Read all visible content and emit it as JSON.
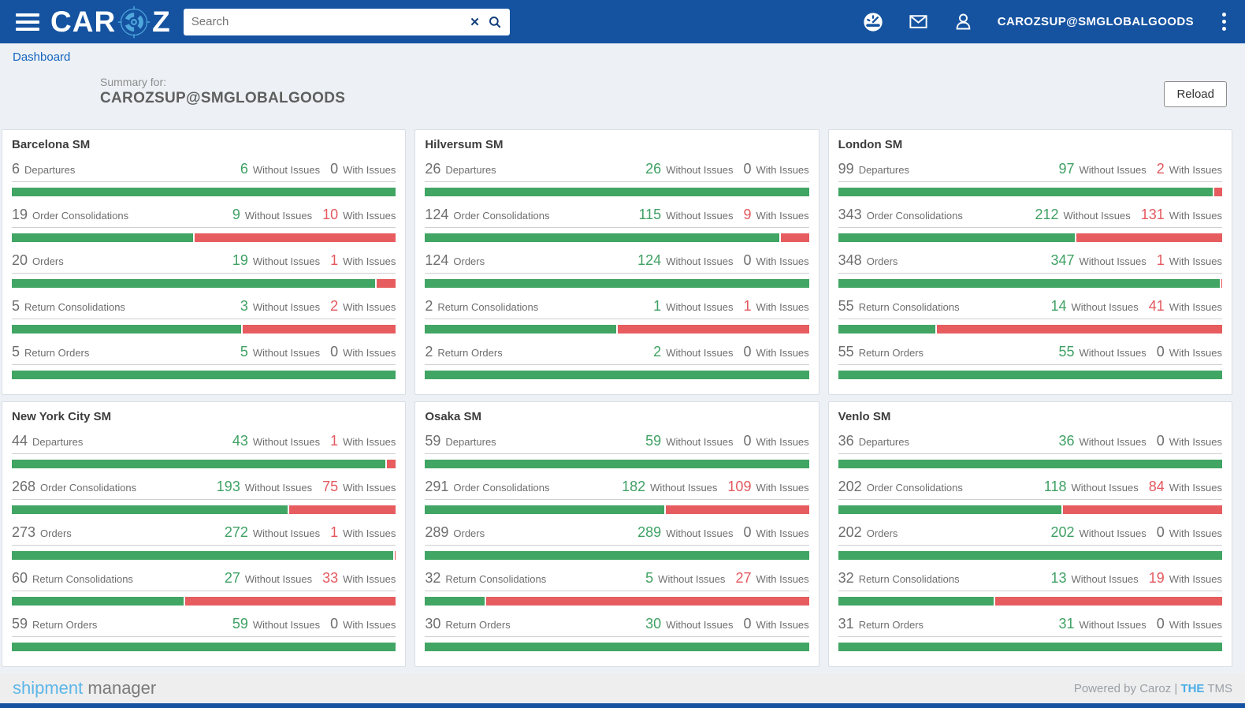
{
  "navbar": {
    "logo_left": "CAR",
    "logo_right": "Z",
    "search_placeholder": "Search",
    "user_label": "CAROZSUP@SMGLOBALGOODS"
  },
  "breadcrumb": {
    "label": "Dashboard"
  },
  "summary": {
    "label": "Summary for:",
    "value": "CAROZSUP@SMGLOBALGOODS",
    "reload_label": "Reload"
  },
  "labels": {
    "without_issues": "Without Issues",
    "with_issues": "With Issues"
  },
  "colors": {
    "navbar_blue": "#1553a1",
    "green": "#41a564",
    "red": "#e75c5f",
    "link_blue": "#1565c0",
    "footer_accent_blue": "#5cb6e8"
  },
  "cards": [
    {
      "title": "Barcelona SM",
      "metrics": [
        {
          "label": "Departures",
          "total": 6,
          "without": 6,
          "with": 0
        },
        {
          "label": "Order Consolidations",
          "total": 19,
          "without": 9,
          "with": 10
        },
        {
          "label": "Orders",
          "total": 20,
          "without": 19,
          "with": 1
        },
        {
          "label": "Return Consolidations",
          "total": 5,
          "without": 3,
          "with": 2
        },
        {
          "label": "Return Orders",
          "total": 5,
          "without": 5,
          "with": 0
        }
      ]
    },
    {
      "title": "Hilversum SM",
      "metrics": [
        {
          "label": "Departures",
          "total": 26,
          "without": 26,
          "with": 0
        },
        {
          "label": "Order Consolidations",
          "total": 124,
          "without": 115,
          "with": 9
        },
        {
          "label": "Orders",
          "total": 124,
          "without": 124,
          "with": 0
        },
        {
          "label": "Return Consolidations",
          "total": 2,
          "without": 1,
          "with": 1
        },
        {
          "label": "Return Orders",
          "total": 2,
          "without": 2,
          "with": 0
        }
      ]
    },
    {
      "title": "London SM",
      "metrics": [
        {
          "label": "Departures",
          "total": 99,
          "without": 97,
          "with": 2
        },
        {
          "label": "Order Consolidations",
          "total": 343,
          "without": 212,
          "with": 131
        },
        {
          "label": "Orders",
          "total": 348,
          "without": 347,
          "with": 1
        },
        {
          "label": "Return Consolidations",
          "total": 55,
          "without": 14,
          "with": 41
        },
        {
          "label": "Return Orders",
          "total": 55,
          "without": 55,
          "with": 0
        }
      ]
    },
    {
      "title": "New York City SM",
      "metrics": [
        {
          "label": "Departures",
          "total": 44,
          "without": 43,
          "with": 1
        },
        {
          "label": "Order Consolidations",
          "total": 268,
          "without": 193,
          "with": 75
        },
        {
          "label": "Orders",
          "total": 273,
          "without": 272,
          "with": 1
        },
        {
          "label": "Return Consolidations",
          "total": 60,
          "without": 27,
          "with": 33
        },
        {
          "label": "Return Orders",
          "total": 59,
          "without": 59,
          "with": 0
        }
      ]
    },
    {
      "title": "Osaka SM",
      "metrics": [
        {
          "label": "Departures",
          "total": 59,
          "without": 59,
          "with": 0
        },
        {
          "label": "Order Consolidations",
          "total": 291,
          "without": 182,
          "with": 109
        },
        {
          "label": "Orders",
          "total": 289,
          "without": 289,
          "with": 0
        },
        {
          "label": "Return Consolidations",
          "total": 32,
          "without": 5,
          "with": 27
        },
        {
          "label": "Return Orders",
          "total": 30,
          "without": 30,
          "with": 0
        }
      ]
    },
    {
      "title": "Venlo SM",
      "metrics": [
        {
          "label": "Departures",
          "total": 36,
          "without": 36,
          "with": 0
        },
        {
          "label": "Order Consolidations",
          "total": 202,
          "without": 118,
          "with": 84
        },
        {
          "label": "Orders",
          "total": 202,
          "without": 202,
          "with": 0
        },
        {
          "label": "Return Consolidations",
          "total": 32,
          "without": 13,
          "with": 19
        },
        {
          "label": "Return Orders",
          "total": 31,
          "without": 31,
          "with": 0
        }
      ]
    }
  ],
  "footer": {
    "brand_primary": "shipment",
    "brand_secondary": " manager",
    "powered_prefix": "Powered by Caroz | ",
    "powered_accent": "THE",
    "powered_suffix": " TMS"
  }
}
